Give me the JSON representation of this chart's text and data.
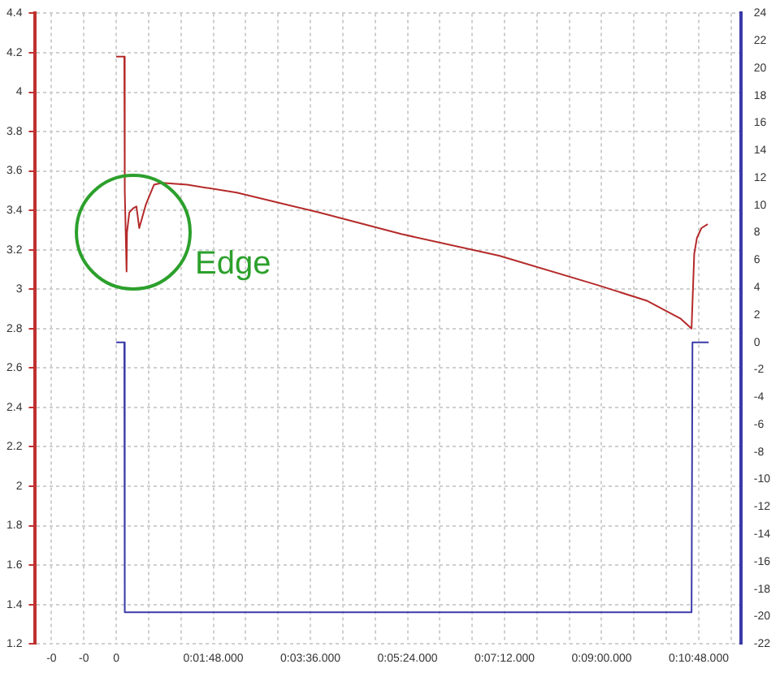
{
  "chart_data": {
    "type": "line",
    "series": [
      {
        "color": "#b52a2a",
        "x": [
          0,
          0.0025,
          0.00264,
          0.0032,
          0.00333,
          0.00406,
          0.00522,
          0.00625,
          0.00711,
          0.00917,
          0.01167,
          0.01417,
          0.02194,
          0.03722,
          0.0625,
          0.08806,
          0.11833,
          0.14889,
          0.16417,
          0.17444,
          0.17778,
          0.17861,
          0.17944,
          0.18083,
          0.18278
        ],
        "values": [
          4.18,
          4.18,
          3.5,
          3.09,
          3.29,
          3.39,
          3.41,
          3.42,
          3.31,
          3.43,
          3.53,
          3.54,
          3.53,
          3.49,
          3.39,
          3.28,
          3.17,
          3.02,
          2.94,
          2.85,
          2.8,
          3.18,
          3.26,
          3.31,
          3.33
        ]
      },
      {
        "color": "#3a3aa8",
        "axis": "y2",
        "x": [
          0,
          0.0025,
          0.00264,
          0.17778,
          0.17806,
          0.18306
        ],
        "values": [
          0,
          0,
          -19.7,
          -19.7,
          0,
          0
        ]
      }
    ],
    "xlim": [
      -0.025,
      0.193
    ],
    "xticks": [
      {
        "value": -0.02,
        "label": "-0"
      },
      {
        "value": -0.01,
        "label": "-0"
      },
      0,
      {
        "value": 0.01,
        "label": null
      },
      {
        "value": 0.02,
        "label": null
      },
      {
        "value": 0.03,
        "label": "0:01:48.000"
      },
      {
        "value": 0.04,
        "label": null
      },
      {
        "value": 0.05,
        "label": null
      },
      {
        "value": 0.06,
        "label": "0:03:36.000"
      },
      {
        "value": 0.07,
        "label": null
      },
      {
        "value": 0.08,
        "label": null
      },
      {
        "value": 0.09,
        "label": "0:05:24.000"
      },
      {
        "value": 0.1,
        "label": null
      },
      {
        "value": 0.11,
        "label": null
      },
      {
        "value": 0.12,
        "label": "0:07:12.000"
      },
      {
        "value": 0.13,
        "label": null
      },
      {
        "value": 0.14,
        "label": null
      },
      {
        "value": 0.15,
        "label": "0:09:00.000"
      },
      {
        "value": 0.16,
        "label": null
      },
      {
        "value": 0.17,
        "label": null
      },
      {
        "value": 0.18,
        "label": "0:10:48.000"
      },
      {
        "value": 0.19,
        "label": null
      }
    ],
    "ylim": [
      1.2,
      4.4
    ],
    "yticks": [
      1.2,
      1.4,
      1.6,
      1.8,
      2.0,
      2.2,
      2.4,
      2.6,
      2.8,
      3.0,
      3.2,
      3.4,
      3.6,
      3.8,
      4.0,
      4.2,
      4.4
    ],
    "y2lim": [
      -22,
      24
    ],
    "y2ticks": [
      -22,
      -20,
      -18,
      -16,
      -14,
      -12,
      -10,
      -8,
      -6,
      -4,
      -2,
      0,
      2,
      4,
      6,
      8,
      10,
      12,
      14,
      16,
      18,
      20,
      22,
      24
    ],
    "annotations": [
      "Edge"
    ],
    "grid": true,
    "legend": false,
    "marker": "none",
    "line_style": "solid"
  }
}
